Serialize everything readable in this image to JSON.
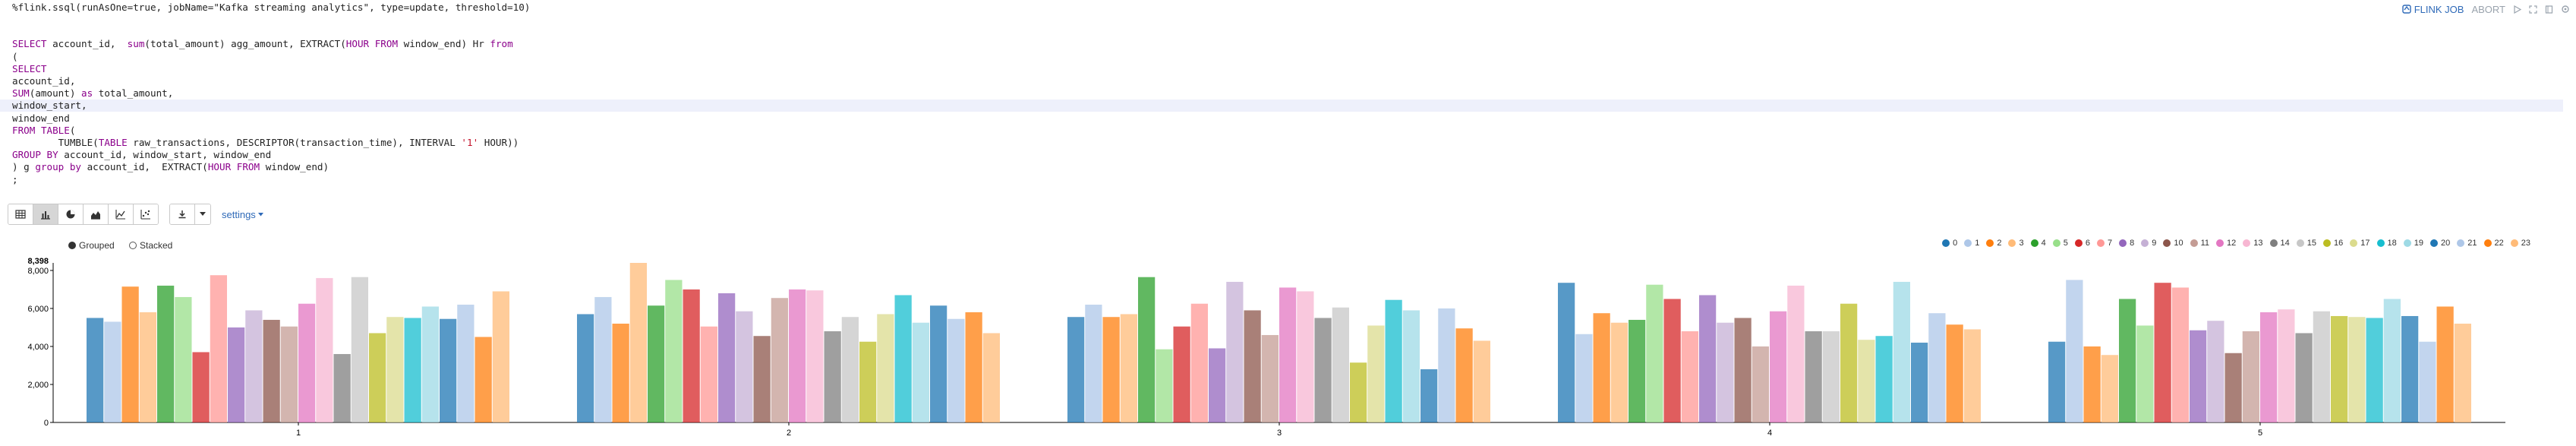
{
  "paragraph": {
    "directive": "%flink.ssql(runAsOne=true, jobName=\"Kafka streaming analytics\", type=update, threshold=10)",
    "actions": {
      "flink_job": "FLINK JOB",
      "abort": "ABORT"
    }
  },
  "code": [
    {
      "type": "blank"
    },
    {
      "type": "blank"
    },
    {
      "type": "line",
      "tokens": [
        {
          "t": "SELECT",
          "k": "kw"
        },
        {
          "t": " account_id,  "
        },
        {
          "t": "sum",
          "k": "kw"
        },
        {
          "t": "(total_amount) agg_amount, EXTRACT("
        },
        {
          "t": "HOUR",
          "k": "kw"
        },
        {
          "t": " "
        },
        {
          "t": "FROM",
          "k": "kw"
        },
        {
          "t": " window_end) Hr "
        },
        {
          "t": "from",
          "k": "kw"
        }
      ]
    },
    {
      "type": "line",
      "tokens": [
        {
          "t": "("
        }
      ]
    },
    {
      "type": "line",
      "tokens": [
        {
          "t": "SELECT",
          "k": "kw"
        }
      ]
    },
    {
      "type": "line",
      "tokens": [
        {
          "t": "account_id,"
        }
      ]
    },
    {
      "type": "line",
      "tokens": [
        {
          "t": "SUM",
          "k": "kw"
        },
        {
          "t": "(amount) "
        },
        {
          "t": "as",
          "k": "kw"
        },
        {
          "t": " total_amount,"
        }
      ]
    },
    {
      "type": "line",
      "hl": true,
      "tokens": [
        {
          "t": "window_start,"
        }
      ]
    },
    {
      "type": "line",
      "tokens": [
        {
          "t": "window_end"
        }
      ]
    },
    {
      "type": "line",
      "tokens": [
        {
          "t": "FROM",
          "k": "kw"
        },
        {
          "t": " "
        },
        {
          "t": "TABLE",
          "k": "kw"
        },
        {
          "t": "("
        }
      ]
    },
    {
      "type": "line",
      "tokens": [
        {
          "t": "        TUMBLE("
        },
        {
          "t": "TABLE",
          "k": "kw"
        },
        {
          "t": " raw_transactions, DESCRIPTOR(transaction_time), INTERVAL "
        },
        {
          "t": "'1'",
          "k": "str"
        },
        {
          "t": " HOUR))"
        }
      ]
    },
    {
      "type": "line",
      "tokens": [
        {
          "t": "GROUP BY",
          "k": "kw"
        },
        {
          "t": " account_id, window_start, window_end"
        }
      ]
    },
    {
      "type": "line",
      "tokens": [
        {
          "t": ") g "
        },
        {
          "t": "group by",
          "k": "kw"
        },
        {
          "t": " account_id,  EXTRACT("
        },
        {
          "t": "HOUR",
          "k": "kw"
        },
        {
          "t": " "
        },
        {
          "t": "FROM",
          "k": "kw"
        },
        {
          "t": " window_end)"
        }
      ]
    },
    {
      "type": "line",
      "tokens": [
        {
          "t": ";"
        }
      ]
    }
  ],
  "toolbar": {
    "view_buttons": [
      {
        "name": "table-view-button",
        "icon": "table-icon"
      },
      {
        "name": "bar-chart-view-button",
        "icon": "bar-chart-icon",
        "active": true
      },
      {
        "name": "pie-chart-view-button",
        "icon": "pie-chart-icon"
      },
      {
        "name": "area-chart-view-button",
        "icon": "area-chart-icon"
      },
      {
        "name": "line-chart-view-button",
        "icon": "line-chart-icon"
      },
      {
        "name": "scatter-chart-view-button",
        "icon": "scatter-chart-icon"
      }
    ],
    "download_icon": "download-icon",
    "settings_label": "settings"
  },
  "chart_controls": {
    "grouped_label": "Grouped",
    "stacked_label": "Stacked",
    "selected": "grouped"
  },
  "chart_data": {
    "type": "bar",
    "categories": [
      "1",
      "2",
      "3",
      "4",
      "5"
    ],
    "ylim": [
      0,
      8398
    ],
    "yticks": [
      "0",
      "2,000",
      "4,000",
      "6,000",
      "8,000"
    ],
    "ymax_label": "8,398",
    "colors": [
      "#1f77b4",
      "#aec7e8",
      "#ff7f0e",
      "#ffbb78",
      "#2ca02c",
      "#98df8a",
      "#d62728",
      "#ff9896",
      "#9467bd",
      "#c5b0d5",
      "#8c564b",
      "#c49c94",
      "#e377c2",
      "#f7b6d2",
      "#7f7f7f",
      "#c7c7c7",
      "#bcbd22",
      "#dbdb8d",
      "#17becf",
      "#9edae5",
      "#1f77b4",
      "#aec7e8",
      "#ff7f0e",
      "#ffbb78"
    ],
    "series": [
      {
        "name": "0",
        "values": [
          5500,
          5700,
          5550,
          7350,
          4250
        ]
      },
      {
        "name": "1",
        "values": [
          5300,
          6600,
          6200,
          4650,
          7500
        ]
      },
      {
        "name": "2",
        "values": [
          7150,
          5200,
          5550,
          5750,
          4000
        ]
      },
      {
        "name": "3",
        "values": [
          5800,
          8398,
          5700,
          5250,
          3550
        ]
      },
      {
        "name": "4",
        "values": [
          7200,
          6150,
          7650,
          5400,
          6500
        ]
      },
      {
        "name": "5",
        "values": [
          6600,
          7500,
          3850,
          7250,
          5100
        ]
      },
      {
        "name": "6",
        "values": [
          3700,
          7000,
          5050,
          6500,
          7350
        ]
      },
      {
        "name": "7",
        "values": [
          7750,
          5050,
          6250,
          4800,
          7100
        ]
      },
      {
        "name": "8",
        "values": [
          5000,
          6800,
          3900,
          6700,
          4850
        ]
      },
      {
        "name": "9",
        "values": [
          5900,
          5850,
          7400,
          5250,
          5350
        ]
      },
      {
        "name": "10",
        "values": [
          5400,
          4550,
          5900,
          5500,
          3650
        ]
      },
      {
        "name": "11",
        "values": [
          5050,
          6550,
          4600,
          4000,
          4800
        ]
      },
      {
        "name": "12",
        "values": [
          6250,
          7000,
          7100,
          5850,
          5800
        ]
      },
      {
        "name": "13",
        "values": [
          7600,
          6950,
          6900,
          7200,
          5950
        ]
      },
      {
        "name": "14",
        "values": [
          3600,
          4800,
          5500,
          4800,
          4700
        ]
      },
      {
        "name": "15",
        "values": [
          7650,
          5550,
          6050,
          4800,
          5850
        ]
      },
      {
        "name": "16",
        "values": [
          4700,
          4250,
          3150,
          6250,
          5600
        ]
      },
      {
        "name": "17",
        "values": [
          5550,
          5700,
          5100,
          4350,
          5550
        ]
      },
      {
        "name": "18",
        "values": [
          5500,
          6700,
          6450,
          4550,
          5500
        ]
      },
      {
        "name": "19",
        "values": [
          6100,
          5250,
          5900,
          7400,
          6500
        ]
      },
      {
        "name": "20",
        "values": [
          5450,
          6150,
          2800,
          4200,
          5600
        ]
      },
      {
        "name": "21",
        "values": [
          6200,
          5450,
          6000,
          5750,
          4250
        ]
      },
      {
        "name": "22",
        "values": [
          4500,
          5800,
          4950,
          5150,
          6100
        ]
      },
      {
        "name": "23",
        "values": [
          6900,
          4700,
          4300,
          4900,
          5200
        ]
      }
    ]
  }
}
